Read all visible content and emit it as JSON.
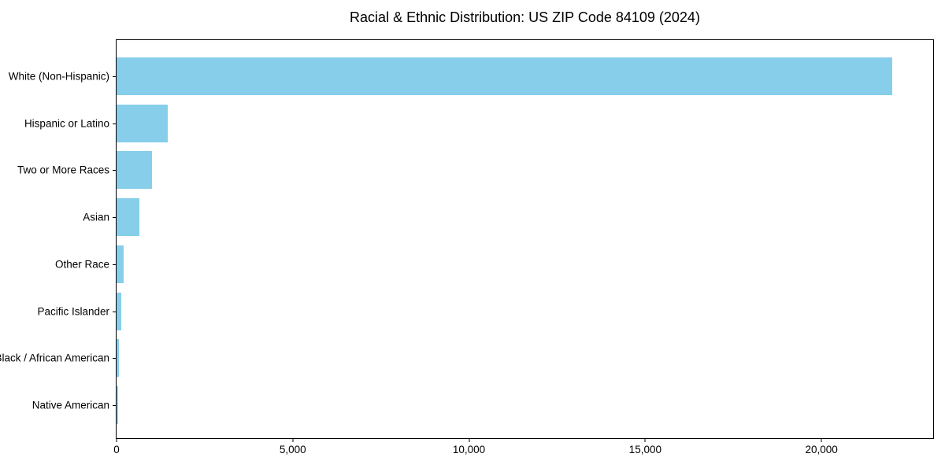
{
  "chart_data": {
    "type": "bar",
    "orientation": "horizontal",
    "title": "Racial & Ethnic Distribution: US ZIP Code 84109 (2024)",
    "categories": [
      "White (Non-Hispanic)",
      "Hispanic or Latino",
      "Two or More Races",
      "Asian",
      "Other Race",
      "Pacific Islander",
      "Black / African American",
      "Native American"
    ],
    "values": [
      22000,
      1450,
      1000,
      650,
      210,
      130,
      70,
      40
    ],
    "xlabel": "",
    "ylabel": "",
    "xlim": [
      0,
      23170
    ],
    "xticks": [
      {
        "value": 0,
        "label": "0"
      },
      {
        "value": 5000,
        "label": "5,000"
      },
      {
        "value": 10000,
        "label": "10,000"
      },
      {
        "value": 15000,
        "label": "15,000"
      },
      {
        "value": 20000,
        "label": "20,000"
      }
    ],
    "grid": false,
    "legend": null,
    "colors": {
      "bar": "#87CEEB",
      "spine": "#000000",
      "text": "#000000",
      "background": "#ffffff"
    }
  }
}
